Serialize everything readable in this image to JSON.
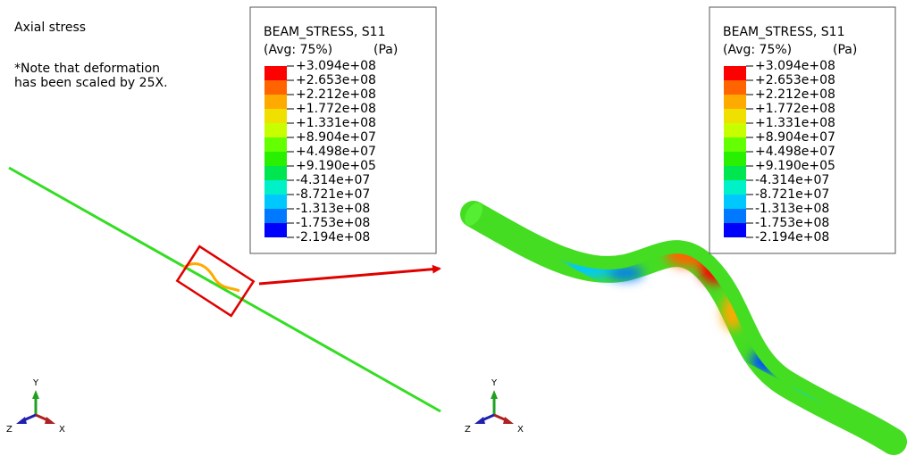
{
  "annotations": {
    "title": "Axial stress",
    "note": [
      "*Note that deformation",
      "has been scaled by 25X."
    ]
  },
  "legends": [
    {
      "title": "BEAM_STRESS, S11",
      "avg": "(Avg: 75%)",
      "unit": "(Pa)",
      "labels": [
        "+3.094e+08",
        "+2.653e+08",
        "+2.212e+08",
        "+1.772e+08",
        "+1.331e+08",
        "+8.904e+07",
        "+4.498e+07",
        "+9.190e+05",
        "-4.314e+07",
        "-8.721e+07",
        "-1.313e+08",
        "-1.753e+08",
        "-2.194e+08"
      ],
      "colors": [
        "#ff0000",
        "#ff6400",
        "#ffaa00",
        "#f0e000",
        "#c8ff00",
        "#64ff00",
        "#28f000",
        "#00e650",
        "#00f0c8",
        "#00c8ff",
        "#0078ff",
        "#0000ff"
      ]
    },
    {
      "title": "BEAM_STRESS, S11",
      "avg": "(Avg: 75%)",
      "unit": "(Pa)",
      "labels": [
        "+3.094e+08",
        "+2.653e+08",
        "+2.212e+08",
        "+1.772e+08",
        "+1.331e+08",
        "+8.904e+07",
        "+4.498e+07",
        "+9.190e+05",
        "-4.314e+07",
        "-8.721e+07",
        "-1.313e+08",
        "-1.753e+08",
        "-2.194e+08"
      ],
      "colors": [
        "#ff0000",
        "#ff6400",
        "#ffaa00",
        "#f0e000",
        "#c8ff00",
        "#64ff00",
        "#28f000",
        "#00e650",
        "#00f0c8",
        "#00c8ff",
        "#0078ff",
        "#0000ff"
      ]
    }
  ],
  "triads": [
    {
      "y": "Y",
      "z": "Z",
      "x": "X"
    },
    {
      "y": "Y",
      "z": "Z",
      "x": "X"
    }
  ]
}
